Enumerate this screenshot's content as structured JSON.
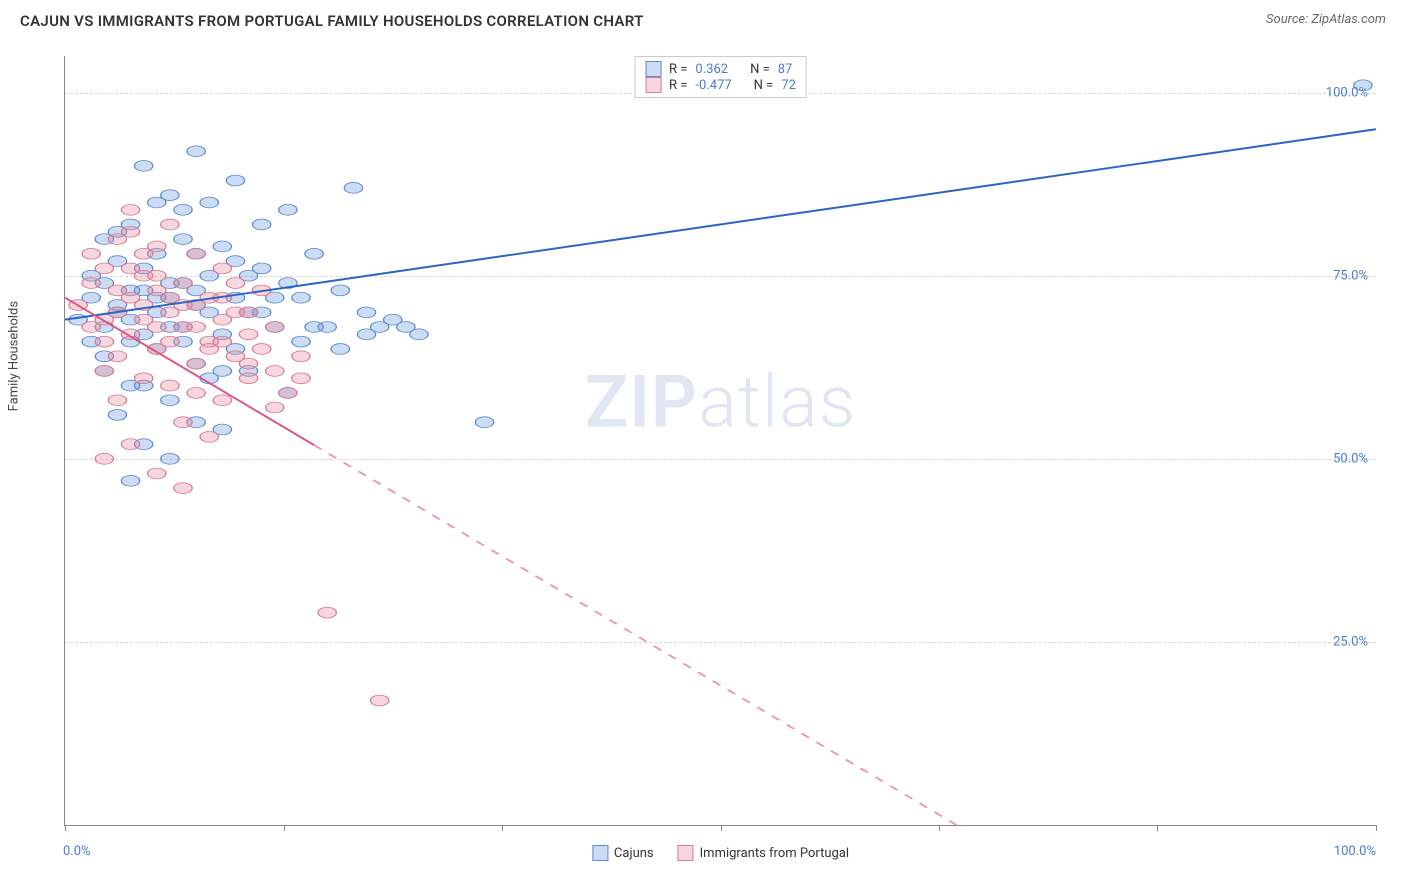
{
  "title": "CAJUN VS IMMIGRANTS FROM PORTUGAL FAMILY HOUSEHOLDS CORRELATION CHART",
  "source": "Source: ZipAtlas.com",
  "watermark_bold": "ZIP",
  "watermark_light": "atlas",
  "y_axis_label": "Family Households",
  "chart": {
    "type": "scatter",
    "xlim": [
      0,
      100
    ],
    "ylim": [
      0,
      105
    ],
    "x_ticks": [
      0,
      16.67,
      33.33,
      50,
      66.67,
      83.33,
      100
    ],
    "x_tick_labels_visible": {
      "0": "0.0%",
      "100": "100.0%"
    },
    "y_gridlines": [
      25,
      50,
      75,
      100
    ],
    "y_tick_labels": {
      "25": "25.0%",
      "50": "50.0%",
      "75": "75.0%",
      "100": "100.0%"
    },
    "background_color": "#ffffff",
    "grid_color": "#d8d8d8",
    "axis_color": "#888888",
    "tick_label_color": "#4a7bd0",
    "axis_label_color": "#444444",
    "series": [
      {
        "name": "Cajuns",
        "color_fill": "rgba(110,155,220,0.35)",
        "color_stroke": "#5b8ad0",
        "marker_radius": 7,
        "trend_color": "#2b64c4",
        "trend_width": 2.5,
        "trend_dash_after_x": 100,
        "trend": {
          "x1": 0,
          "y1": 69,
          "x2": 100,
          "y2": 95
        },
        "r_value": "0.362",
        "n_value": "87",
        "points": [
          [
            1,
            69
          ],
          [
            2,
            72
          ],
          [
            2,
            66
          ],
          [
            3,
            68
          ],
          [
            3,
            74
          ],
          [
            3,
            62
          ],
          [
            4,
            71
          ],
          [
            4,
            77
          ],
          [
            5,
            69
          ],
          [
            5,
            82
          ],
          [
            5,
            60
          ],
          [
            6,
            73
          ],
          [
            6,
            67
          ],
          [
            6,
            90
          ],
          [
            7,
            70
          ],
          [
            7,
            78
          ],
          [
            7,
            65
          ],
          [
            8,
            86
          ],
          [
            8,
            72
          ],
          [
            8,
            58
          ],
          [
            9,
            74
          ],
          [
            9,
            80
          ],
          [
            9,
            68
          ],
          [
            10,
            92
          ],
          [
            10,
            71
          ],
          [
            10,
            63
          ],
          [
            11,
            75
          ],
          [
            11,
            85
          ],
          [
            12,
            67
          ],
          [
            12,
            79
          ],
          [
            12,
            54
          ],
          [
            13,
            72
          ],
          [
            13,
            88
          ],
          [
            14,
            70
          ],
          [
            14,
            62
          ],
          [
            15,
            76
          ],
          [
            15,
            82
          ],
          [
            16,
            68
          ],
          [
            17,
            84
          ],
          [
            17,
            59
          ],
          [
            18,
            72
          ],
          [
            19,
            78
          ],
          [
            20,
            68
          ],
          [
            21,
            65
          ],
          [
            22,
            87
          ],
          [
            23,
            70
          ],
          [
            24,
            68
          ],
          [
            25,
            69
          ],
          [
            26,
            68
          ],
          [
            27,
            67
          ],
          [
            5,
            47
          ],
          [
            8,
            50
          ],
          [
            10,
            55
          ],
          [
            4,
            56
          ],
          [
            6,
            52
          ],
          [
            32,
            55
          ],
          [
            99,
            101
          ],
          [
            3,
            64
          ],
          [
            4,
            81
          ],
          [
            9,
            66
          ],
          [
            11,
            70
          ],
          [
            13,
            65
          ],
          [
            2,
            75
          ],
          [
            6,
            60
          ],
          [
            8,
            74
          ],
          [
            10,
            78
          ],
          [
            5,
            73
          ],
          [
            7,
            85
          ],
          [
            4,
            70
          ],
          [
            12,
            62
          ],
          [
            14,
            75
          ],
          [
            16,
            72
          ],
          [
            18,
            66
          ],
          [
            3,
            80
          ],
          [
            5,
            66
          ],
          [
            7,
            72
          ],
          [
            9,
            84
          ],
          [
            11,
            61
          ],
          [
            13,
            77
          ],
          [
            15,
            70
          ],
          [
            17,
            74
          ],
          [
            19,
            68
          ],
          [
            21,
            73
          ],
          [
            23,
            67
          ],
          [
            6,
            76
          ],
          [
            8,
            68
          ],
          [
            10,
            73
          ]
        ]
      },
      {
        "name": "Immigrants from Portugal",
        "color_fill": "rgba(230,140,160,0.35)",
        "color_stroke": "#d87a94",
        "marker_radius": 7,
        "trend_color": "#e05080",
        "trend_width": 2,
        "trend_dash_after_x": 19,
        "trend": {
          "x1": 0,
          "y1": 72,
          "x2": 68,
          "y2": 0
        },
        "r_value": "-0.477",
        "n_value": "72",
        "points": [
          [
            1,
            71
          ],
          [
            2,
            74
          ],
          [
            2,
            68
          ],
          [
            3,
            66
          ],
          [
            3,
            76
          ],
          [
            3,
            62
          ],
          [
            4,
            70
          ],
          [
            4,
            80
          ],
          [
            4,
            58
          ],
          [
            5,
            72
          ],
          [
            5,
            67
          ],
          [
            5,
            84
          ],
          [
            6,
            69
          ],
          [
            6,
            75
          ],
          [
            6,
            61
          ],
          [
            7,
            73
          ],
          [
            7,
            65
          ],
          [
            7,
            79
          ],
          [
            8,
            70
          ],
          [
            8,
            60
          ],
          [
            8,
            82
          ],
          [
            9,
            68
          ],
          [
            9,
            74
          ],
          [
            9,
            55
          ],
          [
            10,
            71
          ],
          [
            10,
            63
          ],
          [
            10,
            78
          ],
          [
            11,
            66
          ],
          [
            11,
            72
          ],
          [
            12,
            69
          ],
          [
            12,
            58
          ],
          [
            12,
            76
          ],
          [
            13,
            64
          ],
          [
            13,
            70
          ],
          [
            14,
            67
          ],
          [
            14,
            61
          ],
          [
            15,
            65
          ],
          [
            15,
            73
          ],
          [
            16,
            62
          ],
          [
            16,
            68
          ],
          [
            17,
            59
          ],
          [
            18,
            64
          ],
          [
            3,
            50
          ],
          [
            5,
            52
          ],
          [
            7,
            48
          ],
          [
            9,
            46
          ],
          [
            11,
            53
          ],
          [
            20,
            29
          ],
          [
            24,
            17
          ],
          [
            2,
            78
          ],
          [
            4,
            73
          ],
          [
            6,
            71
          ],
          [
            8,
            66
          ],
          [
            10,
            68
          ],
          [
            12,
            72
          ],
          [
            14,
            63
          ],
          [
            3,
            69
          ],
          [
            5,
            76
          ],
          [
            7,
            68
          ],
          [
            9,
            71
          ],
          [
            11,
            65
          ],
          [
            13,
            74
          ],
          [
            4,
            64
          ],
          [
            6,
            78
          ],
          [
            8,
            72
          ],
          [
            10,
            59
          ],
          [
            12,
            66
          ],
          [
            14,
            70
          ],
          [
            16,
            57
          ],
          [
            18,
            61
          ],
          [
            5,
            81
          ],
          [
            7,
            75
          ]
        ]
      }
    ],
    "legend_top": {
      "r_label": "R =",
      "n_label": "N ="
    },
    "legend_bottom_labels": [
      "Cajuns",
      "Immigrants from Portugal"
    ]
  }
}
